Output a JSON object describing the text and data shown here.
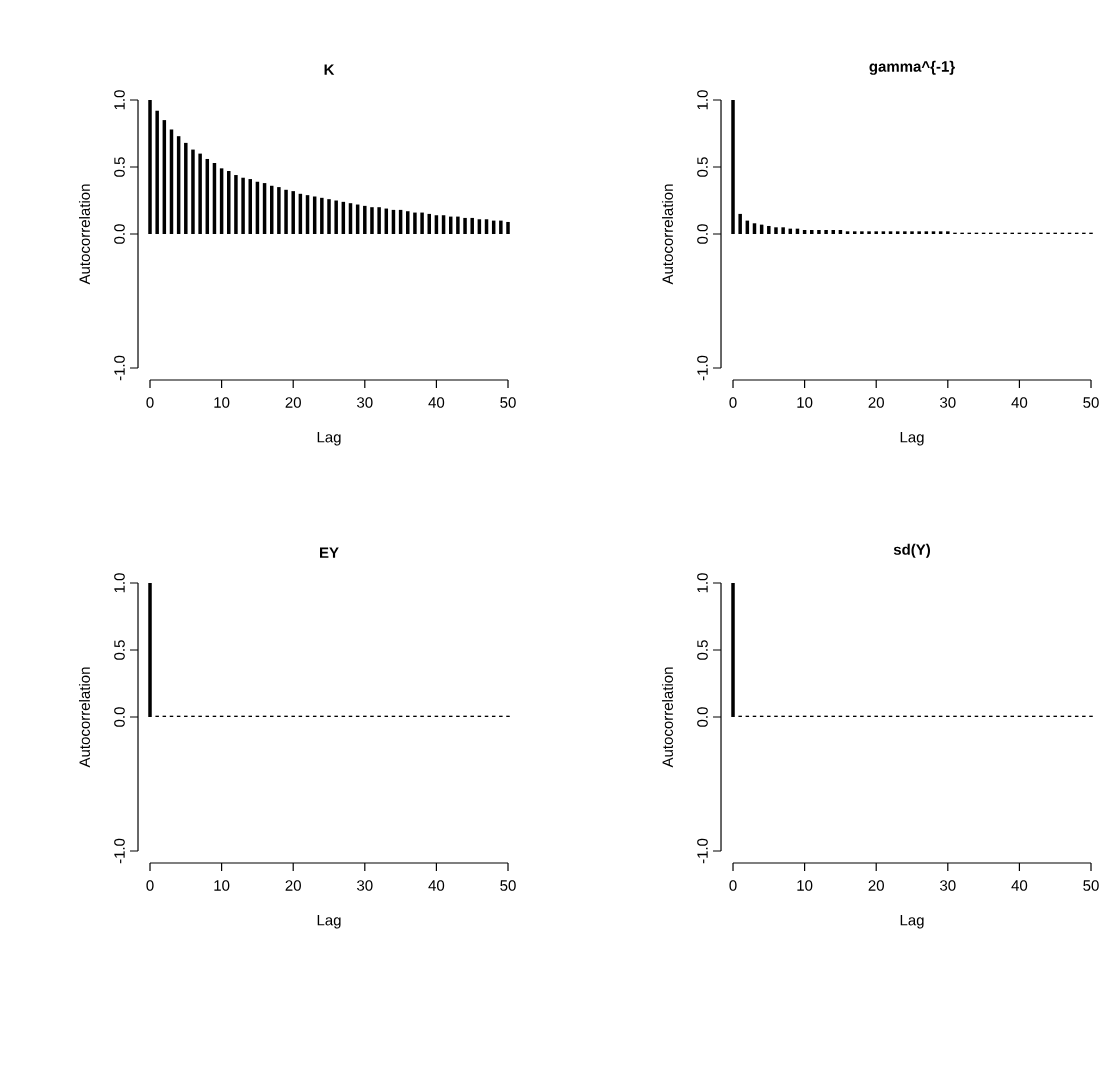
{
  "chart_data": [
    {
      "type": "bar",
      "title": "K",
      "xlabel": "Lag",
      "ylabel": "Autocorrelation",
      "color": "#000000",
      "x": [
        0,
        1,
        2,
        3,
        4,
        5,
        6,
        7,
        8,
        9,
        10,
        11,
        12,
        13,
        14,
        15,
        16,
        17,
        18,
        19,
        20,
        21,
        22,
        23,
        24,
        25,
        26,
        27,
        28,
        29,
        30,
        31,
        32,
        33,
        34,
        35,
        36,
        37,
        38,
        39,
        40,
        41,
        42,
        43,
        44,
        45,
        46,
        47,
        48,
        49,
        50
      ],
      "values": [
        1.0,
        0.92,
        0.85,
        0.78,
        0.73,
        0.68,
        0.63,
        0.6,
        0.56,
        0.53,
        0.49,
        0.47,
        0.44,
        0.42,
        0.41,
        0.39,
        0.38,
        0.36,
        0.35,
        0.33,
        0.32,
        0.3,
        0.29,
        0.28,
        0.27,
        0.26,
        0.25,
        0.24,
        0.23,
        0.22,
        0.21,
        0.2,
        0.2,
        0.19,
        0.18,
        0.18,
        0.17,
        0.16,
        0.16,
        0.15,
        0.14,
        0.14,
        0.13,
        0.13,
        0.12,
        0.12,
        0.11,
        0.11,
        0.1,
        0.1,
        0.09
      ],
      "xlim": [
        0,
        50
      ],
      "xticks": [
        0,
        10,
        20,
        30,
        40,
        50
      ],
      "ylim": [
        -1,
        1
      ],
      "yticks": [
        {
          "value": -1,
          "label": "-1.0"
        },
        {
          "value": 0,
          "label": "0.0"
        },
        {
          "value": 0.5,
          "label": "0.5"
        },
        {
          "value": 1,
          "label": "1.0"
        }
      ]
    },
    {
      "type": "bar",
      "title": "gamma^{-1}",
      "xlabel": "Lag",
      "ylabel": "Autocorrelation",
      "color": "#000000",
      "x": [
        0,
        1,
        2,
        3,
        4,
        5,
        6,
        7,
        8,
        9,
        10,
        11,
        12,
        13,
        14,
        15,
        16,
        17,
        18,
        19,
        20,
        21,
        22,
        23,
        24,
        25,
        26,
        27,
        28,
        29,
        30,
        31,
        32,
        33,
        34,
        35,
        36,
        37,
        38,
        39,
        40,
        41,
        42,
        43,
        44,
        45,
        46,
        47,
        48,
        49,
        50
      ],
      "values": [
        1.0,
        0.15,
        0.1,
        0.08,
        0.07,
        0.06,
        0.05,
        0.05,
        0.04,
        0.04,
        0.03,
        0.03,
        0.03,
        0.03,
        0.03,
        0.03,
        0.02,
        0.02,
        0.02,
        0.02,
        0.02,
        0.02,
        0.02,
        0.02,
        0.02,
        0.02,
        0.02,
        0.02,
        0.02,
        0.02,
        0.02,
        0.01,
        0.01,
        0.01,
        0.01,
        0.01,
        0.01,
        0.01,
        0.01,
        0.01,
        0.01,
        0.01,
        0.01,
        0.01,
        0.01,
        0.01,
        0.01,
        0.01,
        0.01,
        0.01,
        0.01
      ],
      "xlim": [
        0,
        50
      ],
      "xticks": [
        0,
        10,
        20,
        30,
        40,
        50
      ],
      "ylim": [
        -1,
        1
      ],
      "yticks": [
        {
          "value": -1,
          "label": "-1.0"
        },
        {
          "value": 0,
          "label": "0.0"
        },
        {
          "value": 0.5,
          "label": "0.5"
        },
        {
          "value": 1,
          "label": "1.0"
        }
      ]
    },
    {
      "type": "bar",
      "title": "EY",
      "xlabel": "Lag",
      "ylabel": "Autocorrelation",
      "color": "#000000",
      "x": [
        0,
        1,
        2,
        3,
        4,
        5,
        6,
        7,
        8,
        9,
        10,
        11,
        12,
        13,
        14,
        15,
        16,
        17,
        18,
        19,
        20,
        21,
        22,
        23,
        24,
        25,
        26,
        27,
        28,
        29,
        30,
        31,
        32,
        33,
        34,
        35,
        36,
        37,
        38,
        39,
        40,
        41,
        42,
        43,
        44,
        45,
        46,
        47,
        48,
        49,
        50
      ],
      "values": [
        1.0,
        0.01,
        0.01,
        0.01,
        0.01,
        0.01,
        0.01,
        0.01,
        0.01,
        0.01,
        0.01,
        0.01,
        0.01,
        0.01,
        0.01,
        0.01,
        0.01,
        0.01,
        0.01,
        0.01,
        0.01,
        0.01,
        0.01,
        0.01,
        0.01,
        0.01,
        0.01,
        0.01,
        0.01,
        0.01,
        0.01,
        0.01,
        0.01,
        0.01,
        0.01,
        0.01,
        0.01,
        0.01,
        0.01,
        0.01,
        0.01,
        0.01,
        0.01,
        0.01,
        0.01,
        0.01,
        0.01,
        0.01,
        0.01,
        0.01,
        0.01
      ],
      "xlim": [
        0,
        50
      ],
      "xticks": [
        0,
        10,
        20,
        30,
        40,
        50
      ],
      "ylim": [
        -1,
        1
      ],
      "yticks": [
        {
          "value": -1,
          "label": "-1.0"
        },
        {
          "value": 0,
          "label": "0.0"
        },
        {
          "value": 0.5,
          "label": "0.5"
        },
        {
          "value": 1,
          "label": "1.0"
        }
      ]
    },
    {
      "type": "bar",
      "title": "sd(Y)",
      "xlabel": "Lag",
      "ylabel": "Autocorrelation",
      "color": "#000000",
      "x": [
        0,
        1,
        2,
        3,
        4,
        5,
        6,
        7,
        8,
        9,
        10,
        11,
        12,
        13,
        14,
        15,
        16,
        17,
        18,
        19,
        20,
        21,
        22,
        23,
        24,
        25,
        26,
        27,
        28,
        29,
        30,
        31,
        32,
        33,
        34,
        35,
        36,
        37,
        38,
        39,
        40,
        41,
        42,
        43,
        44,
        45,
        46,
        47,
        48,
        49,
        50
      ],
      "values": [
        1.0,
        0.01,
        0.01,
        0.01,
        0.01,
        0.01,
        0.01,
        0.01,
        0.01,
        0.01,
        0.01,
        0.01,
        0.01,
        0.01,
        0.01,
        0.01,
        0.01,
        0.01,
        0.01,
        0.01,
        0.01,
        0.01,
        0.01,
        0.01,
        0.01,
        0.01,
        0.01,
        0.01,
        0.01,
        0.01,
        0.01,
        0.01,
        0.01,
        0.01,
        0.01,
        0.01,
        0.01,
        0.01,
        0.01,
        0.01,
        0.01,
        0.01,
        0.01,
        0.01,
        0.01,
        0.01,
        0.01,
        0.01,
        0.01,
        0.01,
        0.01
      ],
      "xlim": [
        0,
        50
      ],
      "xticks": [
        0,
        10,
        20,
        30,
        40,
        50
      ],
      "ylim": [
        -1,
        1
      ],
      "yticks": [
        {
          "value": -1,
          "label": "-1.0"
        },
        {
          "value": 0,
          "label": "0.0"
        },
        {
          "value": 0.5,
          "label": "0.5"
        },
        {
          "value": 1,
          "label": "1.0"
        }
      ]
    }
  ]
}
